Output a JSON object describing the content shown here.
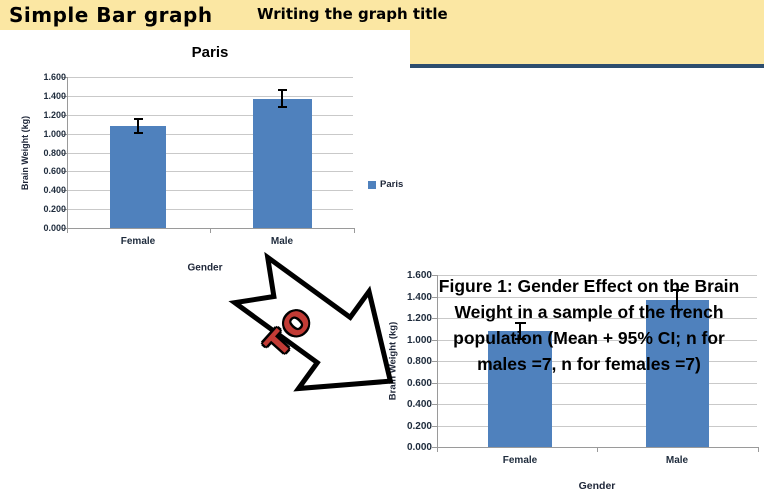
{
  "header": {
    "slide_title": "Simple Bar graph",
    "lesson_subtitle": "Writing the graph title",
    "banner_color": "#FBE7A3",
    "divider_color": "#2D4D6E"
  },
  "arrow": {
    "label": "TO",
    "label_color": "#C23B35"
  },
  "chart_data": [
    {
      "type": "bar",
      "title": "Paris",
      "categories": [
        "Female",
        "Male"
      ],
      "values": [
        1.08,
        1.37
      ],
      "error_bars_ci": [
        [
          1.005,
          1.155
        ],
        [
          1.28,
          1.46
        ]
      ],
      "xlabel": "Gender",
      "ylabel": "Brain Weight (kg)",
      "ylim": [
        0,
        1.6
      ],
      "ytick_labels": [
        "0.000",
        "0.200",
        "0.400",
        "0.600",
        "0.800",
        "1.000",
        "1.200",
        "1.400",
        "1.600"
      ],
      "legend": [
        "Paris"
      ],
      "legend_position": "right",
      "bar_color": "#4F81BD",
      "grid": true
    },
    {
      "type": "bar",
      "title": "Figure 1: Gender Effect on the Brain Weight in a sample of the french population (Mean + 95% CI; n for males =7, n for females =7)",
      "title_lines": [
        "Figure 1: Gender Effect on the Brain",
        "Weight in a sample of the french",
        "population (Mean + 95% CI; n for",
        "males =7, n for females =7)"
      ],
      "categories": [
        "Female",
        "Male"
      ],
      "values": [
        1.08,
        1.37
      ],
      "error_bars_ci": [
        [
          1.005,
          1.155
        ],
        [
          1.28,
          1.46
        ]
      ],
      "xlabel": "Gender",
      "ylabel": "Brain Weight (kg)",
      "ylim": [
        0,
        1.6
      ],
      "ytick_labels": [
        "0.000",
        "0.200",
        "0.400",
        "0.600",
        "0.800",
        "1.000",
        "1.200",
        "1.400",
        "1.600"
      ],
      "legend": null,
      "bar_color": "#4F81BD",
      "grid": true
    }
  ]
}
